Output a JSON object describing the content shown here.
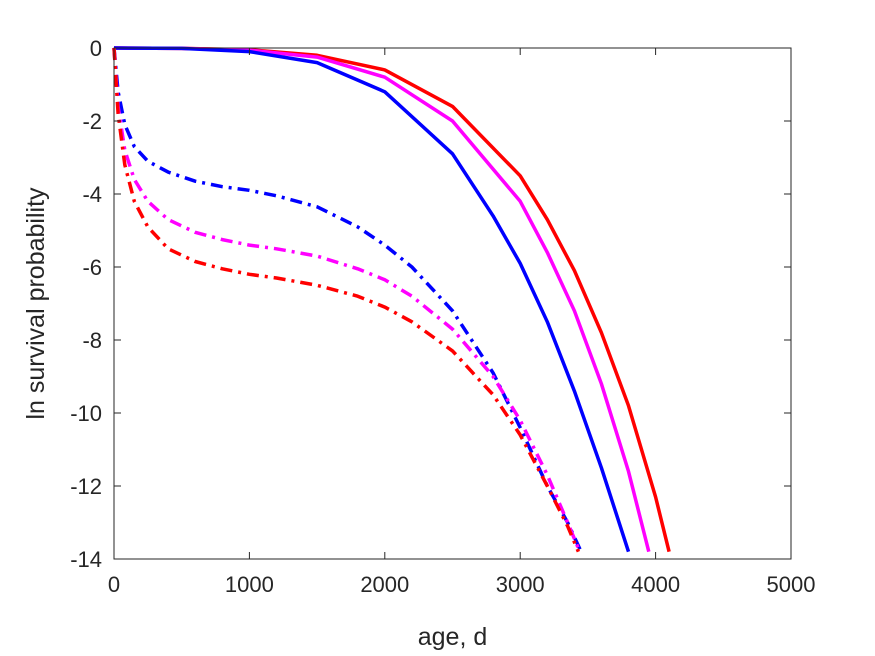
{
  "chart_data": {
    "type": "line",
    "title": "",
    "xlabel": "age, d",
    "ylabel": "ln survival probability",
    "xlim": [
      0,
      5000
    ],
    "ylim": [
      -14,
      0
    ],
    "xticks": [
      "0",
      "1000",
      "2000",
      "3000",
      "4000",
      "5000"
    ],
    "yticks": [
      "0",
      "-2",
      "-4",
      "-6",
      "-8",
      "-10",
      "-12",
      "-14"
    ],
    "grid": false,
    "legend": "none",
    "series": [
      {
        "color": "#ff0000",
        "style": "solid",
        "x": [
          0,
          500,
          1000,
          1500,
          2000,
          2500,
          3000,
          3200,
          3400,
          3600,
          3800,
          4000,
          4100
        ],
        "y": [
          0,
          -0.01,
          -0.05,
          -0.2,
          -0.6,
          -1.6,
          -3.5,
          -4.7,
          -6.1,
          -7.8,
          -9.8,
          -12.3,
          -13.8
        ]
      },
      {
        "color": "#ff00ff",
        "style": "solid",
        "x": [
          0,
          500,
          1000,
          1500,
          2000,
          2500,
          3000,
          3200,
          3400,
          3600,
          3800,
          3950
        ],
        "y": [
          0,
          -0.01,
          -0.06,
          -0.25,
          -0.8,
          -2.0,
          -4.2,
          -5.6,
          -7.2,
          -9.2,
          -11.6,
          -13.8
        ]
      },
      {
        "color": "#0000ff",
        "style": "solid",
        "x": [
          0,
          500,
          1000,
          1500,
          2000,
          2500,
          2800,
          3000,
          3200,
          3400,
          3600,
          3800
        ],
        "y": [
          0,
          -0.01,
          -0.1,
          -0.4,
          -1.2,
          -2.9,
          -4.6,
          -5.9,
          -7.5,
          -9.4,
          -11.5,
          -13.8
        ]
      },
      {
        "color": "#0000ff",
        "style": "dashdot",
        "x": [
          0,
          30,
          80,
          150,
          250,
          400,
          600,
          800,
          1000,
          1200,
          1500,
          1800,
          2000,
          2200,
          2500,
          2800,
          3000,
          3200,
          3350,
          3450
        ],
        "y": [
          0,
          -1.2,
          -2.1,
          -2.7,
          -3.1,
          -3.4,
          -3.65,
          -3.8,
          -3.9,
          -4.05,
          -4.35,
          -4.9,
          -5.4,
          -6.0,
          -7.2,
          -8.9,
          -10.4,
          -12.0,
          -13.0,
          -13.8
        ]
      },
      {
        "color": "#ff00ff",
        "style": "dashdot",
        "x": [
          0,
          30,
          80,
          150,
          250,
          400,
          600,
          800,
          1000,
          1200,
          1500,
          1800,
          2000,
          2200,
          2500,
          2800,
          3000,
          3200,
          3350,
          3440
        ],
        "y": [
          0,
          -1.6,
          -2.8,
          -3.6,
          -4.2,
          -4.7,
          -5.05,
          -5.25,
          -5.4,
          -5.5,
          -5.7,
          -6.05,
          -6.35,
          -6.8,
          -7.7,
          -9.0,
          -10.2,
          -11.7,
          -13.0,
          -13.8
        ]
      },
      {
        "color": "#ff0000",
        "style": "dashdot",
        "x": [
          0,
          30,
          80,
          150,
          250,
          400,
          600,
          800,
          1000,
          1200,
          1500,
          1800,
          2000,
          2200,
          2500,
          2800,
          3000,
          3200,
          3350,
          3430
        ],
        "y": [
          0,
          -1.8,
          -3.2,
          -4.2,
          -4.9,
          -5.5,
          -5.85,
          -6.05,
          -6.2,
          -6.3,
          -6.5,
          -6.8,
          -7.1,
          -7.5,
          -8.3,
          -9.5,
          -10.6,
          -12.0,
          -13.1,
          -13.8
        ]
      }
    ]
  }
}
